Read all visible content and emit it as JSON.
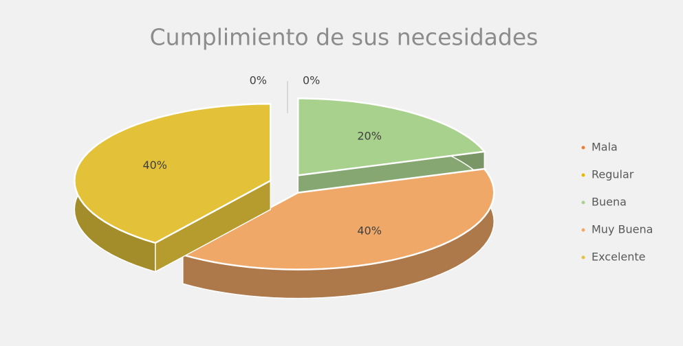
{
  "chart_data": {
    "type": "pie",
    "title": "Cumplimiento de sus necesidades",
    "categories": [
      "Mala",
      "Regular",
      "Buena",
      "Muy Buena",
      "Excelente"
    ],
    "values": [
      0,
      0,
      20,
      40,
      40
    ],
    "value_labels": [
      "0%",
      "0%",
      "20%",
      "40%",
      "40%"
    ],
    "colors": [
      "#ed7d31",
      "#e6b800",
      "#a9d18e",
      "#f0a868",
      "#e3c23a"
    ],
    "legend": "right"
  }
}
